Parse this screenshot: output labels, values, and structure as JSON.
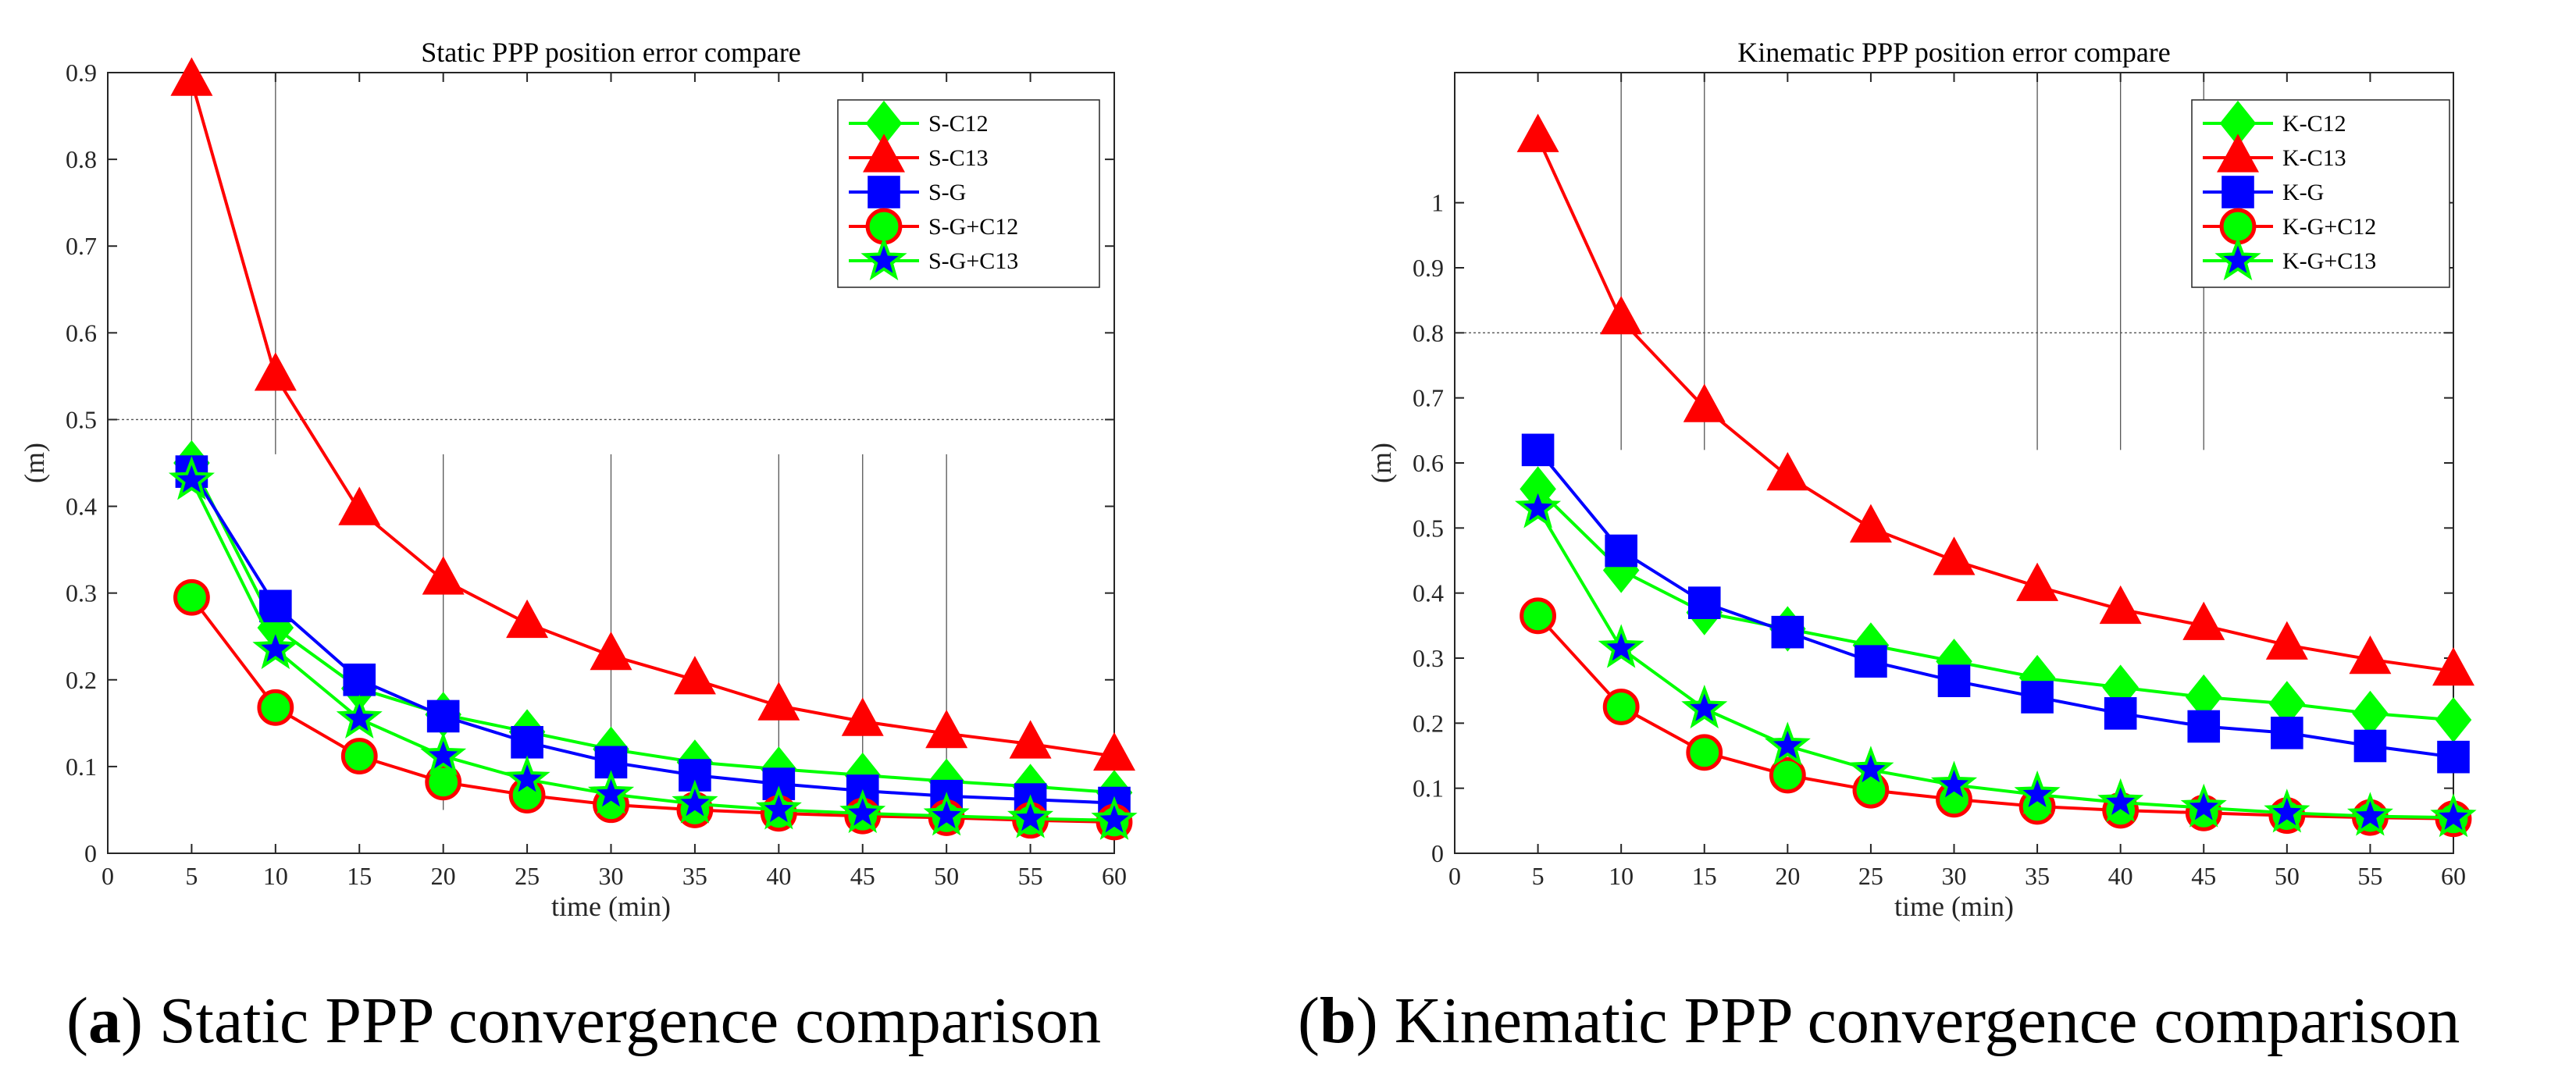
{
  "chart_data": [
    {
      "type": "line",
      "title": "Static PPP position error compare",
      "xlabel": "time (min)",
      "ylabel": "(m)",
      "xlim": [
        0,
        60
      ],
      "ylim": [
        0,
        0.9
      ],
      "xticks": [
        0,
        5,
        10,
        15,
        20,
        25,
        30,
        35,
        40,
        45,
        50,
        55,
        60
      ],
      "yticks": [
        0,
        0.1,
        0.2,
        0.3,
        0.4,
        0.5,
        0.6,
        0.7,
        0.8,
        0.9
      ],
      "x": [
        5,
        10,
        15,
        20,
        25,
        30,
        35,
        40,
        45,
        50,
        55,
        60
      ],
      "reference_lines": {
        "horizontal": [
          0.5
        ],
        "vertical_x": [
          5,
          10,
          20,
          30,
          40,
          45,
          50
        ]
      },
      "legend_location": "top-right",
      "caption_label": "a",
      "caption_text": " Static PPP convergence comparison",
      "series": [
        {
          "name": "S-C12",
          "color": "#00FF00",
          "marker": "diamond",
          "values": [
            0.45,
            0.26,
            0.19,
            0.16,
            0.14,
            0.12,
            0.105,
            0.097,
            0.09,
            0.083,
            0.077,
            0.07
          ]
        },
        {
          "name": "S-C13",
          "color": "#FF0000",
          "marker": "triangle",
          "values": [
            0.89,
            0.55,
            0.395,
            0.315,
            0.265,
            0.228,
            0.2,
            0.17,
            0.152,
            0.138,
            0.126,
            0.112
          ]
        },
        {
          "name": "S-G",
          "color": "#0000FF",
          "marker": "square",
          "values": [
            0.44,
            0.285,
            0.2,
            0.158,
            0.128,
            0.105,
            0.09,
            0.08,
            0.072,
            0.066,
            0.062,
            0.058
          ]
        },
        {
          "name": "S-G+C12",
          "color": "#FF0000",
          "fill": "#00FF00",
          "marker": "circle",
          "values": [
            0.295,
            0.168,
            0.112,
            0.082,
            0.067,
            0.056,
            0.05,
            0.046,
            0.043,
            0.041,
            0.038,
            0.036
          ]
        },
        {
          "name": "S-G+C13",
          "color": "#00FF00",
          "fill": "#0000FF",
          "marker": "star",
          "values": [
            0.43,
            0.235,
            0.155,
            0.112,
            0.085,
            0.068,
            0.057,
            0.05,
            0.046,
            0.043,
            0.04,
            0.038
          ]
        }
      ]
    },
    {
      "type": "line",
      "title": "Kinematic PPP position error compare",
      "xlabel": "time (min)",
      "ylabel": "(m)",
      "xlim": [
        0,
        60
      ],
      "ylim": [
        0,
        1.2
      ],
      "xticks": [
        0,
        5,
        10,
        15,
        20,
        25,
        30,
        35,
        40,
        45,
        50,
        55,
        60
      ],
      "yticks": [
        0,
        0.1,
        0.2,
        0.3,
        0.4,
        0.5,
        0.6,
        0.7,
        0.8,
        0.9,
        1
      ],
      "x": [
        5,
        10,
        15,
        20,
        25,
        30,
        35,
        40,
        45,
        50,
        55,
        60
      ],
      "reference_lines": {
        "horizontal": [
          0.8
        ],
        "vertical_x": [
          10,
          15,
          35,
          40,
          45
        ]
      },
      "legend_location": "top-right",
      "caption_label": "b",
      "caption_text": " Kinematic PPP convergence comparison",
      "series": [
        {
          "name": "K-C12",
          "color": "#00FF00",
          "marker": "diamond",
          "values": [
            0.56,
            0.435,
            0.37,
            0.345,
            0.32,
            0.295,
            0.27,
            0.255,
            0.24,
            0.23,
            0.215,
            0.205
          ]
        },
        {
          "name": "K-C13",
          "color": "#FF0000",
          "marker": "triangle",
          "values": [
            1.1,
            0.82,
            0.685,
            0.58,
            0.5,
            0.45,
            0.41,
            0.375,
            0.35,
            0.32,
            0.298,
            0.28
          ]
        },
        {
          "name": "K-G",
          "color": "#0000FF",
          "marker": "square",
          "values": [
            0.62,
            0.465,
            0.385,
            0.34,
            0.295,
            0.265,
            0.24,
            0.215,
            0.195,
            0.185,
            0.165,
            0.148
          ]
        },
        {
          "name": "K-G+C12",
          "color": "#FF0000",
          "fill": "#00FF00",
          "marker": "circle",
          "values": [
            0.365,
            0.225,
            0.155,
            0.12,
            0.097,
            0.083,
            0.072,
            0.066,
            0.062,
            0.058,
            0.055,
            0.053
          ]
        },
        {
          "name": "K-G+C13",
          "color": "#00FF00",
          "fill": "#0000FF",
          "marker": "star",
          "values": [
            0.53,
            0.315,
            0.222,
            0.165,
            0.128,
            0.105,
            0.09,
            0.078,
            0.07,
            0.062,
            0.057,
            0.055
          ]
        }
      ]
    }
  ]
}
